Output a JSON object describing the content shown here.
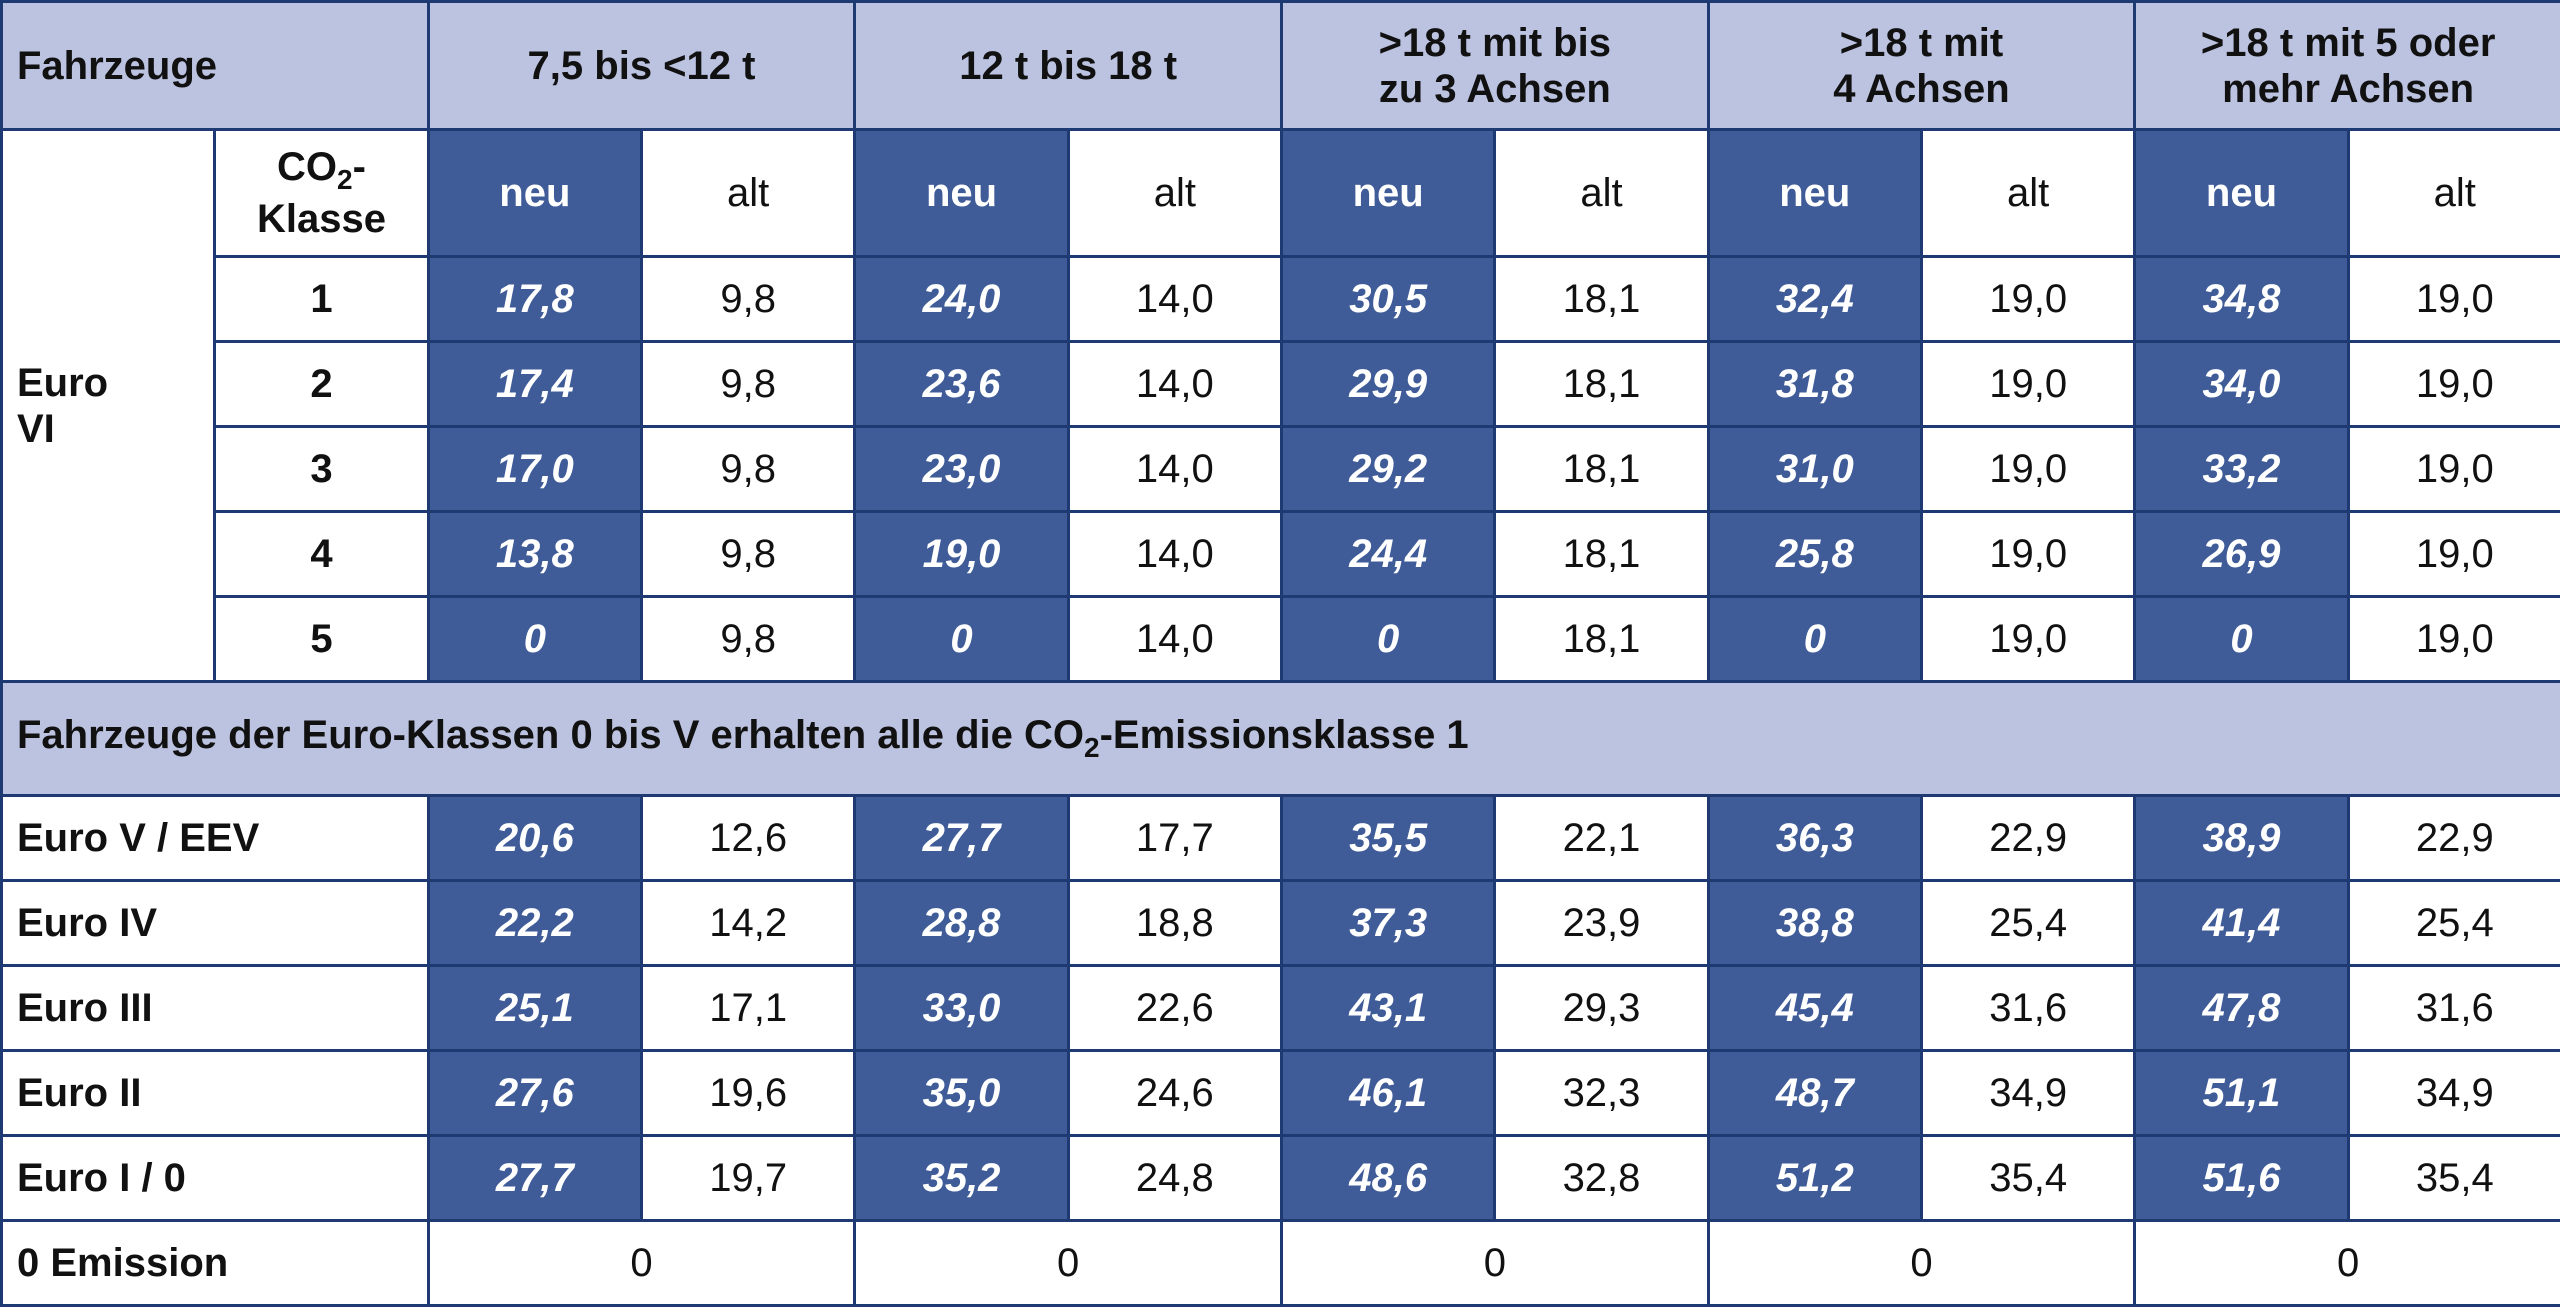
{
  "header": {
    "vehicles": "Fahrzeuge",
    "groups": [
      [
        "7,5 bis <12 t"
      ],
      [
        "12 t bis 18 t"
      ],
      [
        ">18 t mit bis",
        "zu 3 Achsen"
      ],
      [
        ">18 t mit",
        "4 Achsen"
      ],
      [
        ">18 t mit 5 oder",
        "mehr Achsen"
      ]
    ]
  },
  "subheader": {
    "co2": {
      "text": "CO",
      "sub": "2",
      "suffix": "-",
      "line2": "Klasse"
    },
    "new": "neu",
    "old": "alt"
  },
  "euro6": {
    "label": [
      "Euro",
      "VI"
    ],
    "rows": [
      {
        "klasse": "1",
        "values": [
          "17,8",
          "9,8",
          "24,0",
          "14,0",
          "30,5",
          "18,1",
          "32,4",
          "19,0",
          "34,8",
          "19,0"
        ]
      },
      {
        "klasse": "2",
        "values": [
          "17,4",
          "9,8",
          "23,6",
          "14,0",
          "29,9",
          "18,1",
          "31,8",
          "19,0",
          "34,0",
          "19,0"
        ]
      },
      {
        "klasse": "3",
        "values": [
          "17,0",
          "9,8",
          "23,0",
          "14,0",
          "29,2",
          "18,1",
          "31,0",
          "19,0",
          "33,2",
          "19,0"
        ]
      },
      {
        "klasse": "4",
        "values": [
          "13,8",
          "9,8",
          "19,0",
          "14,0",
          "24,4",
          "18,1",
          "25,8",
          "19,0",
          "26,9",
          "19,0"
        ]
      },
      {
        "klasse": "5",
        "values": [
          "0",
          "9,8",
          "0",
          "14,0",
          "0",
          "18,1",
          "0",
          "19,0",
          "0",
          "19,0"
        ]
      }
    ]
  },
  "note": {
    "text": "Fahrzeuge der Euro-Klassen 0 bis V erhalten alle die CO",
    "sub": "2",
    "suffix": "-Emissionsklasse 1"
  },
  "older": [
    {
      "label": "Euro V / EEV",
      "values": [
        "20,6",
        "12,6",
        "27,7",
        "17,7",
        "35,5",
        "22,1",
        "36,3",
        "22,9",
        "38,9",
        "22,9"
      ]
    },
    {
      "label": "Euro IV",
      "values": [
        "22,2",
        "14,2",
        "28,8",
        "18,8",
        "37,3",
        "23,9",
        "38,8",
        "25,4",
        "41,4",
        "25,4"
      ]
    },
    {
      "label": "Euro III",
      "values": [
        "25,1",
        "17,1",
        "33,0",
        "22,6",
        "43,1",
        "29,3",
        "45,4",
        "31,6",
        "47,8",
        "31,6"
      ]
    },
    {
      "label": "Euro II",
      "values": [
        "27,6",
        "19,6",
        "35,0",
        "24,6",
        "46,1",
        "32,3",
        "48,7",
        "34,9",
        "51,1",
        "34,9"
      ]
    },
    {
      "label": "Euro I / 0",
      "values": [
        "27,7",
        "19,7",
        "35,2",
        "24,8",
        "48,6",
        "32,8",
        "51,2",
        "35,4",
        "51,6",
        "35,4"
      ]
    }
  ],
  "zero": {
    "label": "0 Emission",
    "values": [
      "0",
      "0",
      "0",
      "0",
      "0"
    ]
  }
}
